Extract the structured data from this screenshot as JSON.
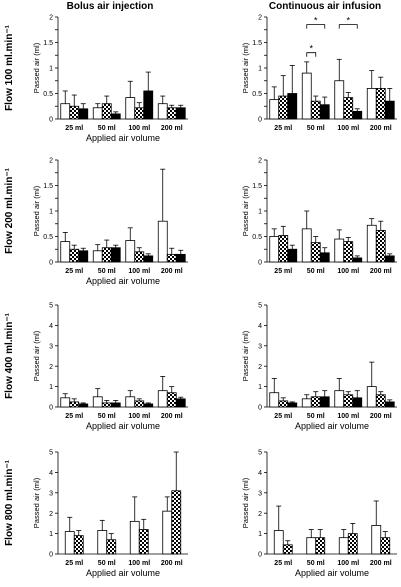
{
  "column_titles": [
    "Bolus air injection",
    "Continuous air infusion"
  ],
  "colors": {
    "open_bar": "#ffffff",
    "checkered_bar": "checkered",
    "filled_bar": "#000000",
    "axis": "#000000"
  },
  "chart_data": [
    {
      "type": "bar",
      "row_label": "Flow 100 ml.min⁻¹",
      "column": "Bolus air injection",
      "categories": [
        "25 ml",
        "50 ml",
        "100 ml",
        "200 ml"
      ],
      "xlabel": "Applied air volume",
      "ylabel": "Passed air (ml)",
      "ylim": [
        0,
        5
      ],
      "yticks": [
        0,
        0.25,
        0.5,
        0.75,
        1,
        1.25,
        1.5,
        1.75,
        2
      ],
      "ytick_labels": [
        "0",
        "",
        "0.5",
        "",
        "1",
        "",
        "1.5",
        "",
        "2"
      ],
      "series": [
        {
          "style": "open",
          "values": [
            0.3,
            0.22,
            0.42,
            0.3
          ],
          "errors": [
            0.25,
            0.08,
            0.32,
            0.15
          ]
        },
        {
          "style": "checkered",
          "values": [
            0.25,
            0.3,
            0.22,
            0.22
          ],
          "errors": [
            0.22,
            0.15,
            0.1,
            0.05
          ]
        },
        {
          "style": "filled",
          "values": [
            0.2,
            0.1,
            0.55,
            0.22
          ],
          "errors": [
            0.1,
            0.04,
            0.37,
            0.05
          ]
        }
      ],
      "annotations": []
    },
    {
      "type": "bar",
      "row_label": "Flow 100 ml.min⁻¹",
      "column": "Continuous air infusion",
      "categories": [
        "25 ml",
        "50 ml",
        "100 ml",
        "200 ml"
      ],
      "xlabel": "",
      "ylabel": "Passed air (ml)",
      "ylim": [
        0,
        5
      ],
      "yticks": [
        0,
        0.25,
        0.5,
        0.75,
        1,
        1.25,
        1.5,
        1.75,
        2
      ],
      "ytick_labels": [
        "0",
        "",
        "0.5",
        "",
        "1",
        "",
        "1.5",
        "",
        "2"
      ],
      "series": [
        {
          "style": "open",
          "values": [
            0.38,
            0.9,
            0.75,
            0.6
          ],
          "errors": [
            0.25,
            0.22,
            0.42,
            0.35
          ]
        },
        {
          "style": "checkered",
          "values": [
            0.45,
            0.35,
            0.42,
            0.6
          ],
          "errors": [
            0.4,
            0.1,
            0.1,
            0.22
          ]
        },
        {
          "style": "filled",
          "values": [
            0.5,
            0.28,
            0.15,
            0.35
          ],
          "errors": [
            0.55,
            0.15,
            0.05,
            0.25
          ]
        }
      ],
      "annotations": [
        {
          "label": "*",
          "from_cat": 1,
          "from_series": 0,
          "to_cat": 1,
          "to_series": 1,
          "y": 1.3
        },
        {
          "label": "*",
          "from_cat": 1,
          "from_series": 0,
          "to_cat": 1,
          "to_series": 2,
          "y": 1.85
        },
        {
          "label": "*",
          "from_cat": 2,
          "from_series": 0,
          "to_cat": 2,
          "to_series": 2,
          "y": 1.85
        }
      ]
    },
    {
      "type": "bar",
      "row_label": "Flow 200 ml.min⁻¹",
      "column": "Bolus air injection",
      "categories": [
        "25 ml",
        "50 ml",
        "100 ml",
        "200 ml"
      ],
      "xlabel": "Applied air volume",
      "ylabel": "Passed air (ml)",
      "ylim": [
        0,
        5
      ],
      "yticks": [
        0,
        0.25,
        0.5,
        0.75,
        1,
        1.25,
        1.5,
        1.75,
        2
      ],
      "ytick_labels": [
        "0",
        "",
        "0.5",
        "",
        "1",
        "",
        "1.5",
        "",
        "2"
      ],
      "series": [
        {
          "style": "open",
          "values": [
            0.4,
            0.22,
            0.42,
            0.8
          ],
          "errors": [
            0.18,
            0.12,
            0.25,
            1.02
          ]
        },
        {
          "style": "checkered",
          "values": [
            0.25,
            0.28,
            0.2,
            0.15
          ],
          "errors": [
            0.08,
            0.15,
            0.08,
            0.12
          ]
        },
        {
          "style": "filled",
          "values": [
            0.22,
            0.28,
            0.12,
            0.15
          ],
          "errors": [
            0.05,
            0.05,
            0.04,
            0.08
          ]
        }
      ],
      "annotations": []
    },
    {
      "type": "bar",
      "row_label": "Flow 200 ml.min⁻¹",
      "column": "Continuous air infusion",
      "categories": [
        "25 ml",
        "50 ml",
        "100 ml",
        "200 ml"
      ],
      "xlabel": "",
      "ylabel": "Passed air (ml)",
      "ylim": [
        0,
        5
      ],
      "yticks": [
        0,
        0.25,
        0.5,
        0.75,
        1,
        1.25,
        1.5,
        1.75,
        2
      ],
      "ytick_labels": [
        "0",
        "",
        "0.5",
        "",
        "1",
        "",
        "1.5",
        "",
        "2"
      ],
      "series": [
        {
          "style": "open",
          "values": [
            0.5,
            0.65,
            0.45,
            0.72
          ],
          "errors": [
            0.15,
            0.35,
            0.18,
            0.13
          ]
        },
        {
          "style": "checkered",
          "values": [
            0.52,
            0.38,
            0.4,
            0.62
          ],
          "errors": [
            0.18,
            0.12,
            0.08,
            0.18
          ]
        },
        {
          "style": "filled",
          "values": [
            0.25,
            0.18,
            0.08,
            0.12
          ],
          "errors": [
            0.08,
            0.1,
            0.04,
            0.04
          ]
        }
      ],
      "annotations": []
    },
    {
      "type": "bar",
      "row_label": "Flow 400 ml.min⁻¹",
      "column": "Bolus air injection",
      "categories": [
        "25 ml",
        "50 ml",
        "100 ml",
        "200 ml"
      ],
      "xlabel": "Applied air volume",
      "ylabel": "Passed air (ml)",
      "ylim": [
        0,
        5
      ],
      "yticks": [
        0,
        1,
        2,
        3,
        4,
        5
      ],
      "ytick_labels": [
        "0",
        "1",
        "2",
        "3",
        "4",
        "5"
      ],
      "series": [
        {
          "style": "open",
          "values": [
            0.45,
            0.5,
            0.5,
            0.8
          ],
          "errors": [
            0.2,
            0.4,
            0.3,
            0.7
          ]
        },
        {
          "style": "checkered",
          "values": [
            0.25,
            0.2,
            0.3,
            0.7
          ],
          "errors": [
            0.15,
            0.12,
            0.1,
            0.3
          ]
        },
        {
          "style": "filled",
          "values": [
            0.15,
            0.2,
            0.15,
            0.4
          ],
          "errors": [
            0.05,
            0.12,
            0.05,
            0.08
          ]
        }
      ],
      "annotations": []
    },
    {
      "type": "bar",
      "row_label": "Flow 400 ml.min⁻¹",
      "column": "Continuous air infusion",
      "categories": [
        "25 ml",
        "50 ml",
        "100 ml",
        "200 ml"
      ],
      "xlabel": "Applied air volume",
      "ylabel": "Passed air (ml)",
      "ylim": [
        0,
        5
      ],
      "yticks": [
        0,
        1,
        2,
        3,
        4,
        5
      ],
      "ytick_labels": [
        "0",
        "1",
        "2",
        "3",
        "4",
        "5"
      ],
      "series": [
        {
          "style": "open",
          "values": [
            0.7,
            0.4,
            0.8,
            1.0
          ],
          "errors": [
            0.7,
            0.2,
            0.6,
            1.2
          ]
        },
        {
          "style": "checkered",
          "values": [
            0.3,
            0.5,
            0.6,
            0.6
          ],
          "errors": [
            0.15,
            0.25,
            0.15,
            0.15
          ]
        },
        {
          "style": "filled",
          "values": [
            0.2,
            0.5,
            0.45,
            0.25
          ],
          "errors": [
            0.05,
            0.3,
            0.35,
            0.1
          ]
        }
      ],
      "annotations": []
    },
    {
      "type": "bar",
      "row_label": "Flow 800 ml.min⁻¹",
      "column": "Bolus air injection",
      "categories": [
        "25 ml",
        "50 ml",
        "100 ml",
        "200 ml"
      ],
      "xlabel": "Applied air volume",
      "ylabel": "Passed air (ml)",
      "ylim": [
        0,
        5
      ],
      "yticks": [
        0,
        1,
        2,
        3,
        4,
        5
      ],
      "ytick_labels": [
        "0",
        "1",
        "2",
        "3",
        "4",
        "5"
      ],
      "series": [
        {
          "style": "open",
          "values": [
            1.1,
            1.15,
            1.6,
            2.1
          ],
          "errors": [
            0.7,
            0.5,
            1.2,
            0.7
          ]
        },
        {
          "style": "checkered",
          "values": [
            0.9,
            0.7,
            1.2,
            3.1
          ],
          "errors": [
            0.25,
            0.3,
            0.5,
            2.3
          ]
        }
      ],
      "annotations": []
    },
    {
      "type": "bar",
      "row_label": "Flow 800 ml.min⁻¹",
      "column": "Continuous air infusion",
      "categories": [
        "25 ml",
        "50 ml",
        "100 ml",
        "200 ml"
      ],
      "xlabel": "Applied air volume",
      "ylabel": "Passed air (ml)",
      "ylim": [
        0,
        5
      ],
      "yticks": [
        0,
        1,
        2,
        3,
        4,
        5
      ],
      "ytick_labels": [
        "0",
        "1",
        "2",
        "3",
        "4",
        "5"
      ],
      "series": [
        {
          "style": "open",
          "values": [
            1.15,
            0.8,
            0.8,
            1.4
          ],
          "errors": [
            1.2,
            0.4,
            0.4,
            1.2
          ]
        },
        {
          "style": "checkered",
          "values": [
            0.45,
            0.8,
            1.0,
            0.8
          ],
          "errors": [
            0.2,
            0.4,
            0.5,
            0.3
          ]
        }
      ],
      "annotations": []
    }
  ]
}
